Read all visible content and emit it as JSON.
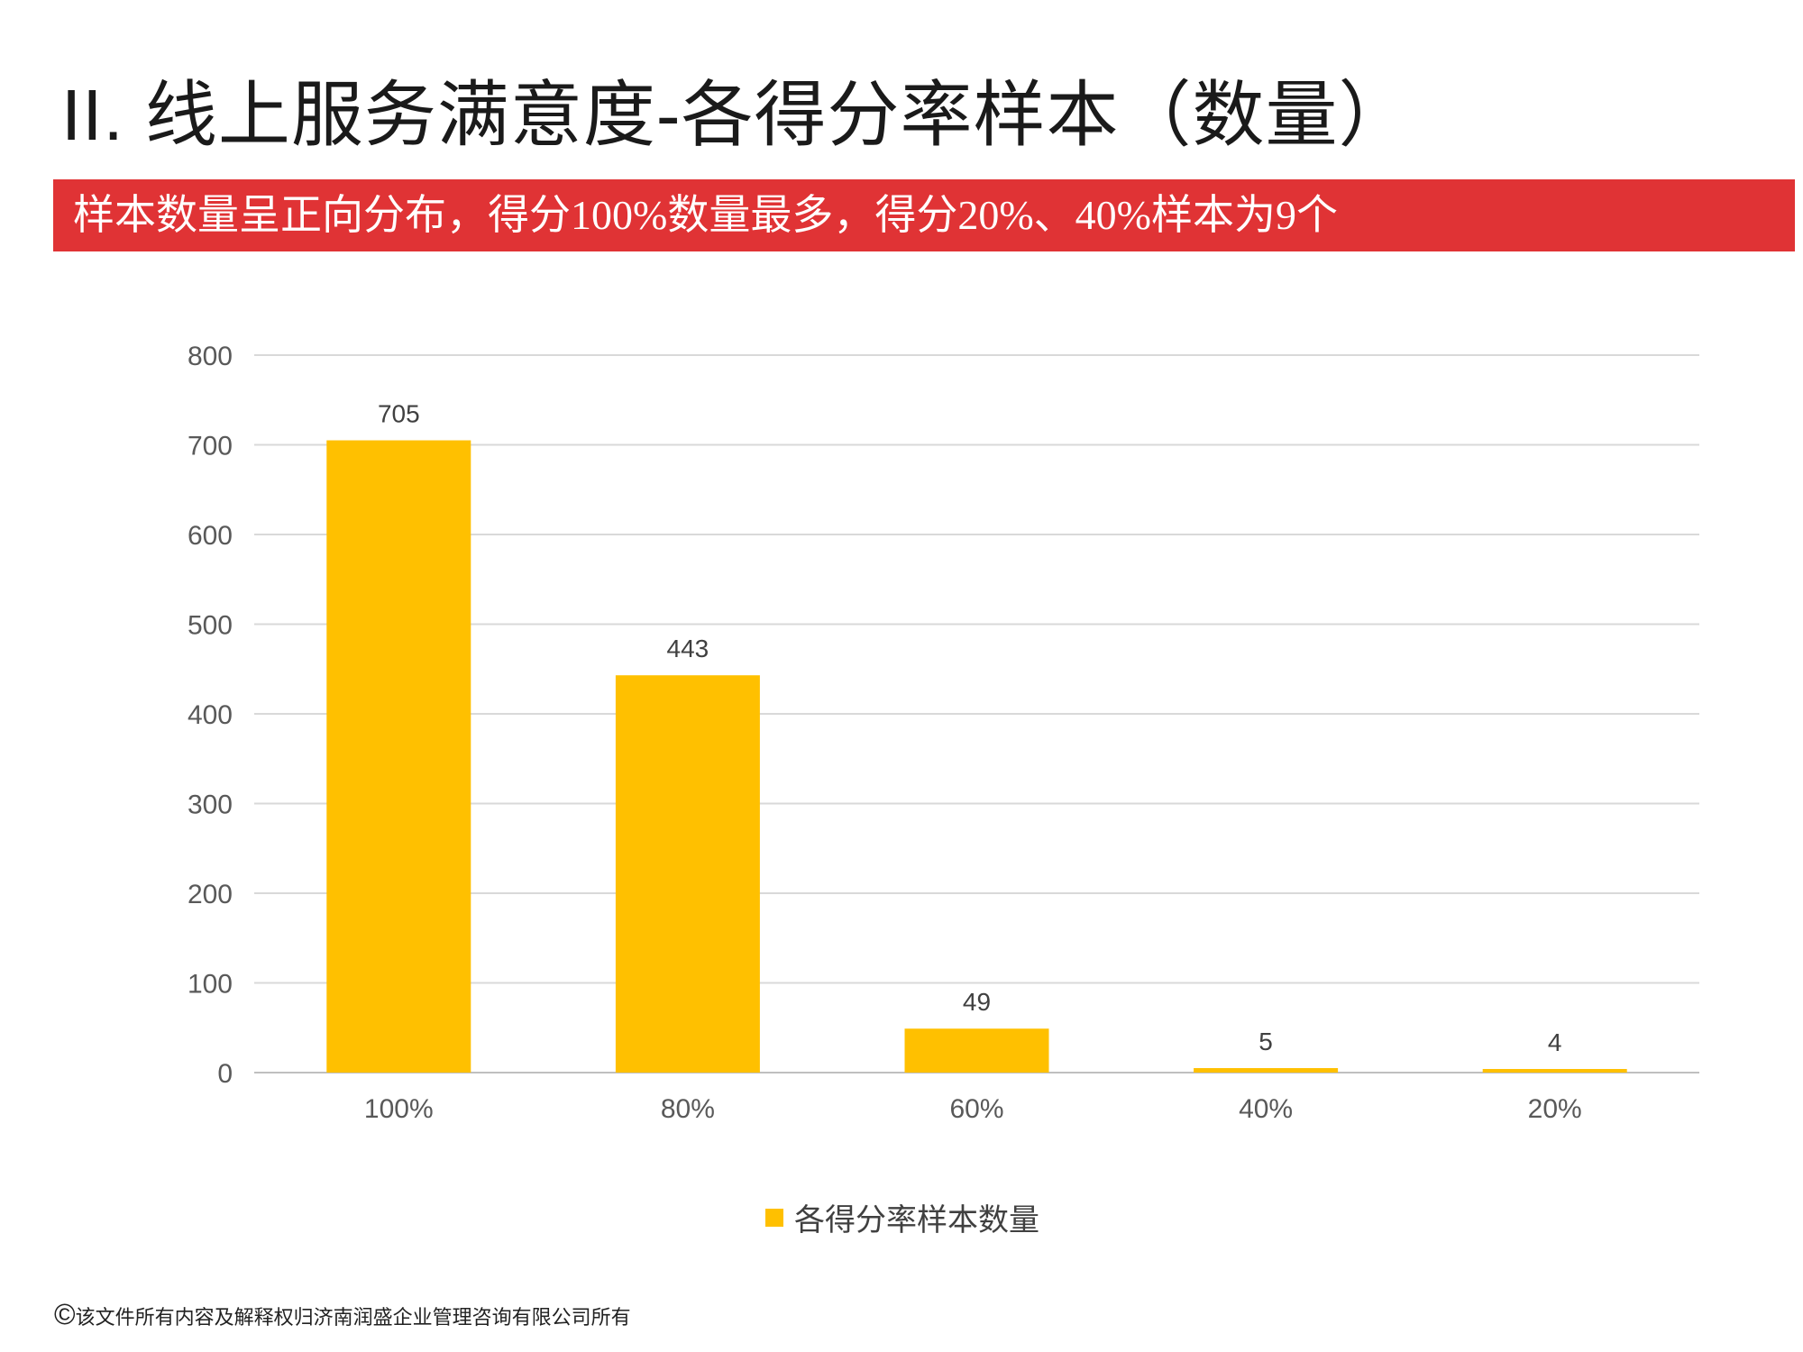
{
  "title": "II.  线上服务满意度-各得分率样本（数量）",
  "subtitle": "样本数量呈正向分布，得分100%数量最多，得分20%、40%样本为9个",
  "footer": {
    "symbol": "©",
    "text": "该文件所有内容及解释权归济南润盛企业管理咨询有限公司所有"
  },
  "colors": {
    "bar": "#ffc000",
    "band": "#e03335",
    "grid": "#d9d9d9"
  },
  "chart_data": {
    "type": "bar",
    "title": "",
    "xlabel": "",
    "ylabel": "",
    "categories": [
      "100%",
      "80%",
      "60%",
      "40%",
      "20%"
    ],
    "series": [
      {
        "name": "各得分率样本数量",
        "values": [
          705,
          443,
          49,
          5,
          4
        ]
      }
    ],
    "ylim": [
      0,
      800
    ],
    "yticks": [
      0,
      100,
      200,
      300,
      400,
      500,
      600,
      700,
      800
    ],
    "grid": true,
    "legend": "bottom-center",
    "data_labels": true
  }
}
